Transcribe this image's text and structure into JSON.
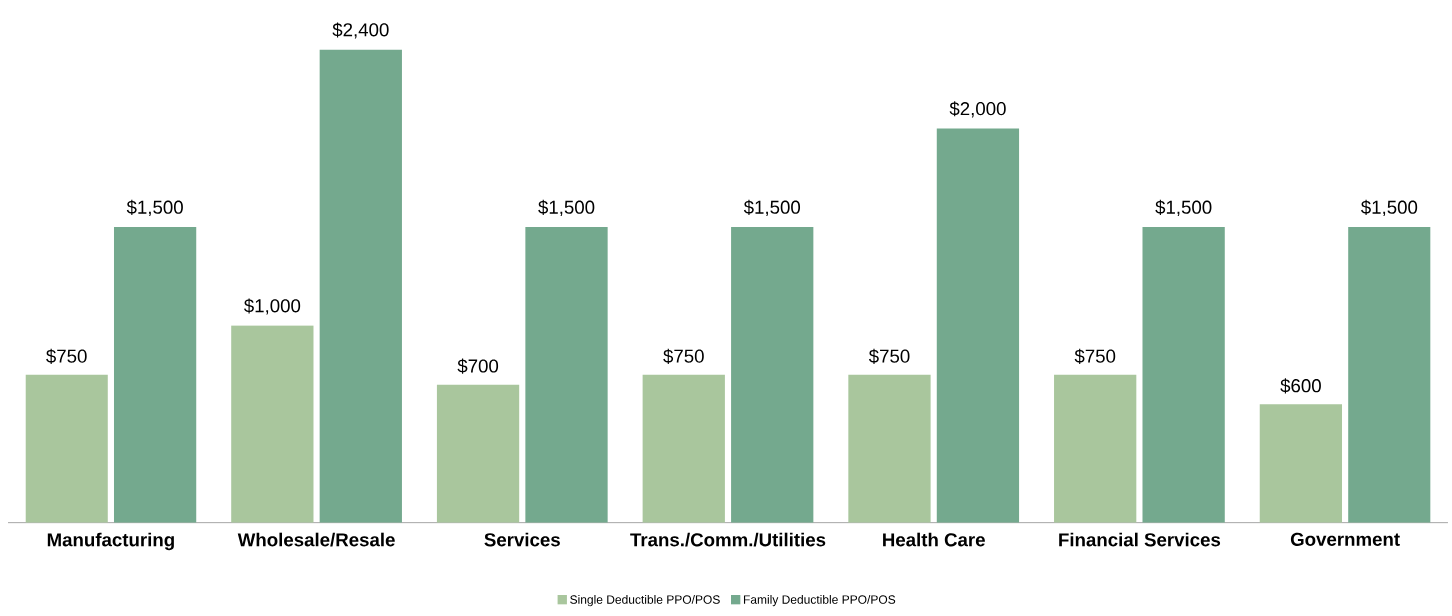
{
  "chart_data": {
    "type": "bar",
    "categories": [
      "Manufacturing",
      "Wholesale/Resale",
      "Services",
      "Trans./Comm./Utilities",
      "Health Care",
      "Financial Services",
      "Government"
    ],
    "series": [
      {
        "name": "Single Deductible PPO/POS",
        "color": "#a9c69d",
        "values": [
          750,
          1000,
          700,
          750,
          750,
          750,
          600
        ],
        "value_labels": [
          "$750",
          "$1,000",
          "$700",
          "$750",
          "$750",
          "$750",
          "$600"
        ]
      },
      {
        "name": "Family Deductible PPO/POS",
        "color": "#74a98e",
        "values": [
          1500,
          2400,
          1500,
          1500,
          2000,
          1500,
          1500
        ],
        "value_labels": [
          "$1,500",
          "$2,400",
          "$1,500",
          "$1,500",
          "$2,000",
          "$1,500",
          "$1,500"
        ]
      }
    ],
    "legend": "bottom"
  }
}
